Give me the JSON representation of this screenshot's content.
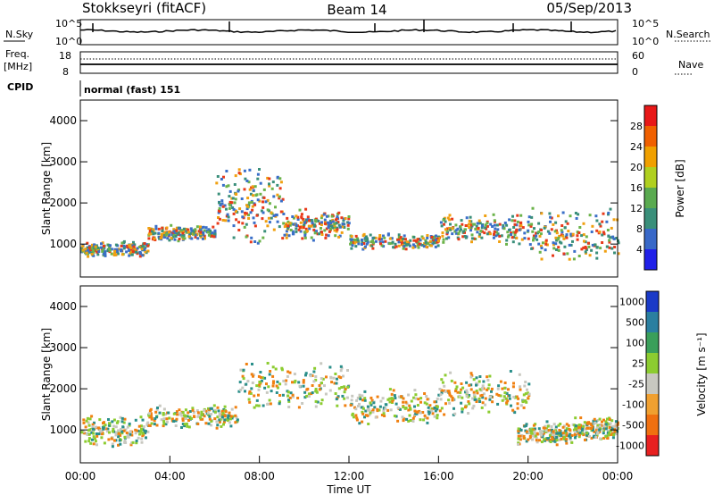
{
  "header": {
    "station": "Stokkseyri (fitACF)",
    "beam": "Beam 14",
    "date": "05/Sep/2013"
  },
  "top_strip": {
    "nsky_label": "N.Sky",
    "nsky_tick_top": "10^5",
    "nsky_tick_bottom": "10^0",
    "nsky_right_top": "10^5",
    "nsky_right_bottom": "10^0",
    "nsearch_label": "N.Search",
    "freq_label": "Freq.",
    "freq_unit": "[MHz]",
    "freq_tick_top": "18",
    "freq_tick_bottom": "8",
    "nave_tick_top": "60",
    "nave_tick_bottom": "0",
    "nave_label": "Nave",
    "cpid_label": "CPID",
    "cpid_value": "normal (fast) 151"
  },
  "chart_data": [
    {
      "type": "heatmap",
      "panel": "power",
      "ylabel": "Slant Range [km]",
      "ylim": [
        200,
        4500
      ],
      "yticks": [
        "1000",
        "2000",
        "3000",
        "4000"
      ],
      "colorbar_label": "Power [dB]",
      "colorbar_ticks": [
        "4",
        "8",
        "12",
        "16",
        "20",
        "24",
        "28"
      ],
      "colorbar_colors": [
        "#2020e8",
        "#3868c8",
        "#3a8f7a",
        "#5aaa50",
        "#b0d020",
        "#f0a000",
        "#f06000",
        "#e81818"
      ],
      "scatter_color_levels": [
        "#3a6fc8",
        "#3a8f7a",
        "#6bb34a",
        "#f0a010",
        "#e83a1a"
      ],
      "scatter_bands": [
        {
          "x": [
            0,
            3
          ],
          "y": [
            800,
            1000
          ]
        },
        {
          "x": [
            3,
            6
          ],
          "y": [
            1200,
            1400
          ]
        },
        {
          "x": [
            6,
            9
          ],
          "y": [
            1500,
            2500
          ]
        },
        {
          "x": [
            9,
            12
          ],
          "y": [
            1300,
            1700
          ]
        },
        {
          "x": [
            12,
            16
          ],
          "y": [
            1000,
            1200
          ]
        },
        {
          "x": [
            16,
            20
          ],
          "y": [
            1200,
            1600
          ]
        },
        {
          "x": [
            20,
            24
          ],
          "y": [
            900,
            1600
          ]
        }
      ]
    },
    {
      "type": "heatmap",
      "panel": "velocity",
      "ylabel": "Slant Range [km]",
      "ylim": [
        200,
        4500
      ],
      "yticks": [
        "1000",
        "2000",
        "3000",
        "4000"
      ],
      "xlabel": "Time UT",
      "xlim": [
        0,
        24
      ],
      "xticks": [
        "00:00",
        "04:00",
        "08:00",
        "12:00",
        "16:00",
        "20:00",
        "00:00"
      ],
      "colorbar_label": "Velocity [m s⁻¹]",
      "colorbar_ticks": [
        "1000",
        "500",
        "100",
        "25",
        "-25",
        "-100",
        "-500",
        "-1000"
      ],
      "colorbar_colors": [
        "#1a3ac8",
        "#2a7fa0",
        "#3a9f5a",
        "#8ccc30",
        "#c8c8c0",
        "#f0a030",
        "#f07010",
        "#e82020"
      ],
      "scatter_color_levels": [
        "#c8c8c0",
        "#f08010",
        "#2a8f8a",
        "#8ccc30"
      ],
      "scatter_bands": [
        {
          "x": [
            0,
            3
          ],
          "y": [
            800,
            1200
          ]
        },
        {
          "x": [
            3,
            7
          ],
          "y": [
            1200,
            1500
          ]
        },
        {
          "x": [
            7,
            12
          ],
          "y": [
            1800,
            2400
          ]
        },
        {
          "x": [
            12,
            16
          ],
          "y": [
            1300,
            1800
          ]
        },
        {
          "x": [
            16,
            20
          ],
          "y": [
            1600,
            2200
          ]
        },
        {
          "x": [
            19.5,
            22
          ],
          "y": [
            800,
            1100
          ]
        },
        {
          "x": [
            22,
            24
          ],
          "y": [
            900,
            1200
          ]
        }
      ]
    }
  ]
}
